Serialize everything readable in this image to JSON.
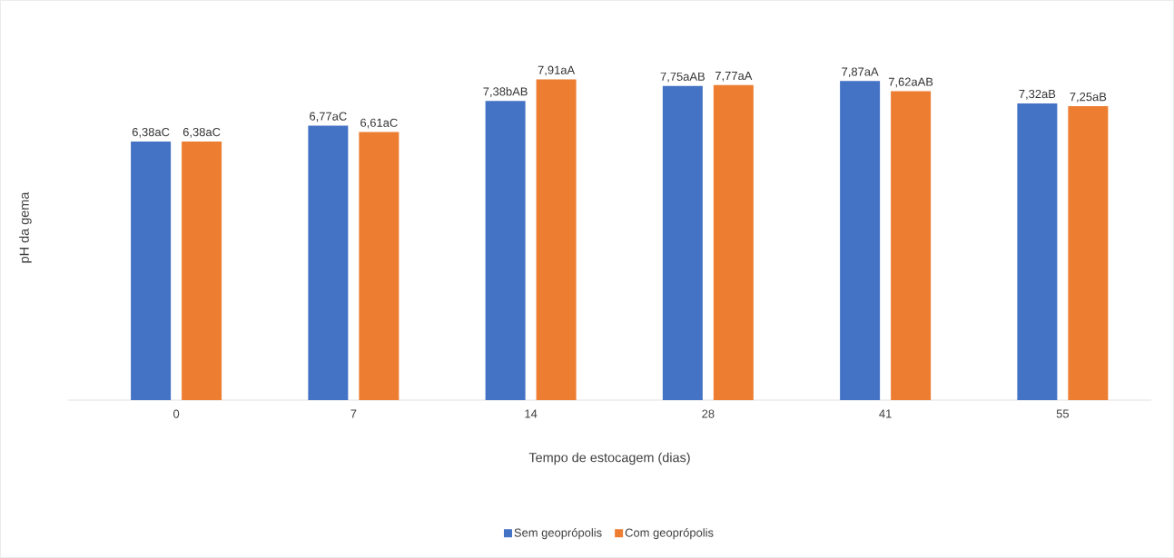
{
  "chart_data": {
    "type": "bar",
    "xlabel": "Tempo de estocagem (dias)",
    "ylabel": "pH da gema",
    "categories": [
      "0",
      "7",
      "14",
      "28",
      "41",
      "55"
    ],
    "series": [
      {
        "name": "Sem geoprópolis",
        "color": "#4472c4",
        "values": [
          6.38,
          6.77,
          7.38,
          7.75,
          7.87,
          7.32
        ],
        "value_labels": [
          "6,38aC",
          "6,77aC",
          "7,38bAB",
          "7,75aAB",
          "7,87aA",
          "7,32aB"
        ]
      },
      {
        "name": "Com geoprópolis",
        "color": "#ed7d31",
        "values": [
          6.38,
          6.61,
          7.91,
          7.77,
          7.62,
          7.25
        ],
        "value_labels": [
          "6,38aC",
          "6,61aC",
          "7,91aA",
          "7,77aA",
          "7,62aAB",
          "7,25aB"
        ]
      }
    ],
    "legend": "bottom"
  }
}
